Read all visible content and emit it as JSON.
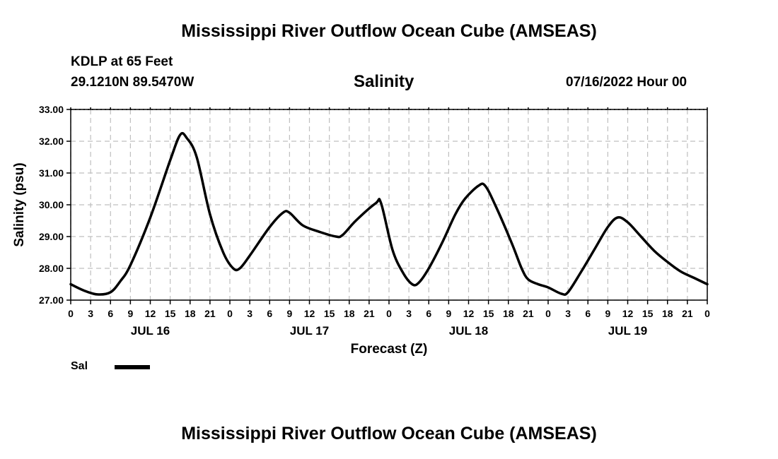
{
  "header": {
    "title": "Mississippi River Outflow Ocean Cube (AMSEAS)",
    "station": "KDLP at 65 Feet",
    "coordinates": "29.1210N  89.5470W",
    "datetime": "07/16/2022 Hour 00"
  },
  "footer": {
    "title": "Mississippi River Outflow Ocean Cube (AMSEAS)"
  },
  "legend": {
    "label": "Sal",
    "color": "#000000"
  },
  "chart_data": {
    "type": "line",
    "title": "Salinity",
    "xlabel": "Forecast (Z)",
    "ylabel": "Salinity (psu)",
    "ylim": [
      27.0,
      33.0
    ],
    "xlim_hours": [
      0,
      96
    ],
    "y_ticks": [
      "27.00",
      "28.00",
      "29.00",
      "30.00",
      "31.00",
      "32.00",
      "33.00"
    ],
    "y_tick_values": [
      27,
      28,
      29,
      30,
      31,
      32,
      33
    ],
    "x_tick_labels": [
      "0",
      "3",
      "6",
      "9",
      "12",
      "15",
      "18",
      "21",
      "0",
      "3",
      "6",
      "9",
      "12",
      "15",
      "18",
      "21",
      "0",
      "3",
      "6",
      "9",
      "12",
      "15",
      "18",
      "21",
      "0",
      "3",
      "6",
      "9",
      "12",
      "15",
      "18",
      "21",
      "0"
    ],
    "x_tick_interval_hours": 3,
    "day_labels": [
      {
        "label": "JUL 16",
        "hour": 12
      },
      {
        "label": "JUL 17",
        "hour": 36
      },
      {
        "label": "JUL 18",
        "hour": 60
      },
      {
        "label": "JUL 19",
        "hour": 84
      }
    ],
    "grid": true,
    "series": [
      {
        "name": "Sal",
        "color": "#000000",
        "points": [
          [
            0,
            27.5
          ],
          [
            2,
            27.3
          ],
          [
            4,
            27.18
          ],
          [
            6,
            27.25
          ],
          [
            7.5,
            27.6
          ],
          [
            9,
            28.1
          ],
          [
            12,
            29.6
          ],
          [
            15,
            31.4
          ],
          [
            16.5,
            32.2
          ],
          [
            17.5,
            32.1
          ],
          [
            19,
            31.5
          ],
          [
            21,
            29.7
          ],
          [
            23,
            28.5
          ],
          [
            24.5,
            28.0
          ],
          [
            25.5,
            28.0
          ],
          [
            27,
            28.4
          ],
          [
            30,
            29.3
          ],
          [
            32,
            29.75
          ],
          [
            33,
            29.75
          ],
          [
            35,
            29.35
          ],
          [
            37.5,
            29.15
          ],
          [
            40,
            29.0
          ],
          [
            41,
            29.05
          ],
          [
            43,
            29.5
          ],
          [
            46,
            30.05
          ],
          [
            46.8,
            30.05
          ],
          [
            48.5,
            28.6
          ],
          [
            50,
            27.9
          ],
          [
            51.5,
            27.5
          ],
          [
            52.5,
            27.55
          ],
          [
            54,
            28.0
          ],
          [
            56,
            28.8
          ],
          [
            58,
            29.7
          ],
          [
            59.5,
            30.2
          ],
          [
            61.5,
            30.6
          ],
          [
            62.5,
            30.6
          ],
          [
            64,
            30.0
          ],
          [
            66.5,
            28.8
          ],
          [
            68,
            28.0
          ],
          [
            69,
            27.65
          ],
          [
            70.5,
            27.5
          ],
          [
            72,
            27.4
          ],
          [
            74,
            27.2
          ],
          [
            75,
            27.25
          ],
          [
            77,
            27.9
          ],
          [
            79,
            28.6
          ],
          [
            81,
            29.3
          ],
          [
            82.5,
            29.6
          ],
          [
            84,
            29.45
          ],
          [
            86,
            29.0
          ],
          [
            88,
            28.55
          ],
          [
            90,
            28.2
          ],
          [
            92,
            27.9
          ],
          [
            94,
            27.7
          ],
          [
            96,
            27.5
          ]
        ]
      }
    ]
  }
}
